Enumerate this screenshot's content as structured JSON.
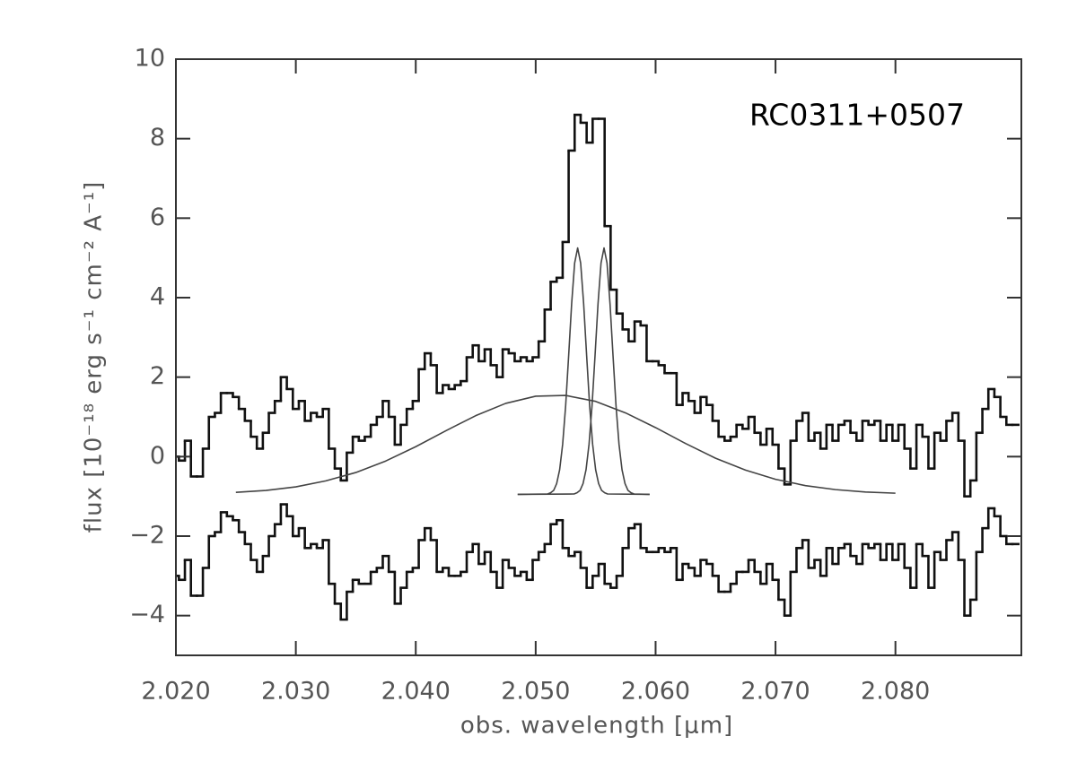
{
  "chart_data": {
    "type": "line",
    "annotation": "RC0311+0507",
    "xlabel": "obs. wavelength [μm]",
    "ylabel": "flux [10⁻¹⁸ erg s⁻¹ cm⁻² A⁻¹]",
    "xlim": [
      2.02,
      2.0905
    ],
    "ylim": [
      -5,
      10
    ],
    "xticks": [
      {
        "value": 2.02,
        "label": "2.020"
      },
      {
        "value": 2.03,
        "label": "2.030"
      },
      {
        "value": 2.04,
        "label": "2.040"
      },
      {
        "value": 2.05,
        "label": "2.050"
      },
      {
        "value": 2.06,
        "label": "2.060"
      },
      {
        "value": 2.07,
        "label": "2.070"
      },
      {
        "value": 2.08,
        "label": "2.080"
      }
    ],
    "yticks": [
      {
        "value": -4,
        "label": "−4"
      },
      {
        "value": -2,
        "label": "−2"
      },
      0,
      2,
      4,
      6,
      8,
      10
    ],
    "x": [
      2.02,
      2.0205,
      2.021,
      2.0215,
      2.022,
      2.0225,
      2.023,
      2.0235,
      2.024,
      2.0245,
      2.025,
      2.0255,
      2.026,
      2.0265,
      2.027,
      2.0275,
      2.028,
      2.0285,
      2.029,
      2.0295,
      2.03,
      2.0305,
      2.031,
      2.0315,
      2.032,
      2.0325,
      2.033,
      2.0335,
      2.034,
      2.0345,
      2.035,
      2.0355,
      2.036,
      2.0365,
      2.037,
      2.0375,
      2.038,
      2.0385,
      2.039,
      2.0395,
      2.04,
      2.0405,
      2.041,
      2.0415,
      2.042,
      2.0425,
      2.043,
      2.0435,
      2.044,
      2.0445,
      2.045,
      2.0455,
      2.046,
      2.0465,
      2.047,
      2.0475,
      2.048,
      2.0485,
      2.049,
      2.0495,
      2.05,
      2.0505,
      2.051,
      2.0515,
      2.052,
      2.0525,
      2.053,
      2.0535,
      2.054,
      2.0545,
      2.055,
      2.0555,
      2.056,
      2.0565,
      2.057,
      2.0575,
      2.058,
      2.0585,
      2.059,
      2.0595,
      2.06,
      2.0605,
      2.061,
      2.0615,
      2.062,
      2.0625,
      2.063,
      2.0635,
      2.064,
      2.0645,
      2.065,
      2.0655,
      2.066,
      2.0665,
      2.067,
      2.0675,
      2.068,
      2.0685,
      2.069,
      2.0695,
      2.07,
      2.0705,
      2.071,
      2.0715,
      2.072,
      2.0725,
      2.073,
      2.0735,
      2.074,
      2.0745,
      2.075,
      2.0755,
      2.076,
      2.0765,
      2.077,
      2.0775,
      2.078,
      2.0785,
      2.079,
      2.0795,
      2.08,
      2.0805,
      2.081,
      2.0815,
      2.082,
      2.0825,
      2.083,
      2.0835,
      2.084,
      2.0845,
      2.085,
      2.0855,
      2.086,
      2.0865,
      2.087,
      2.0875,
      2.088,
      2.0885,
      2.089,
      2.0895,
      2.09
    ],
    "series": [
      {
        "color": "#111111",
        "drawstyle": "steps-mid",
        "values": [
          0.0,
          -0.1,
          0.4,
          -0.5,
          -0.5,
          0.2,
          1.0,
          1.1,
          1.6,
          1.6,
          1.5,
          1.2,
          0.9,
          0.5,
          0.2,
          0.6,
          1.1,
          1.4,
          2.0,
          1.7,
          1.2,
          1.4,
          0.9,
          1.1,
          1.0,
          1.2,
          0.2,
          -0.3,
          -0.6,
          0.1,
          0.5,
          0.4,
          0.5,
          0.8,
          1.0,
          1.4,
          1.0,
          0.3,
          0.8,
          1.2,
          1.4,
          2.2,
          2.6,
          2.3,
          1.6,
          1.8,
          1.7,
          1.8,
          1.9,
          2.5,
          2.8,
          2.4,
          2.7,
          2.3,
          2.0,
          2.7,
          2.6,
          2.4,
          2.5,
          2.4,
          2.5,
          2.9,
          3.7,
          4.4,
          4.5,
          5.4,
          7.7,
          8.6,
          8.4,
          7.9,
          8.5,
          8.5,
          5.8,
          4.2,
          3.6,
          3.2,
          2.9,
          3.4,
          3.3,
          2.4,
          2.4,
          2.3,
          2.1,
          2.1,
          1.3,
          1.6,
          1.4,
          1.1,
          1.5,
          1.3,
          0.9,
          0.5,
          0.4,
          0.5,
          0.8,
          0.7,
          1.0,
          0.6,
          0.3,
          0.7,
          0.3,
          -0.3,
          -0.7,
          0.4,
          0.9,
          1.1,
          0.4,
          0.6,
          0.2,
          0.8,
          0.4,
          0.8,
          0.9,
          0.6,
          0.4,
          0.9,
          0.8,
          0.9,
          0.4,
          0.8,
          0.4,
          0.8,
          0.2,
          -0.3,
          0.8,
          0.5,
          -0.3,
          0.6,
          0.4,
          0.9,
          1.1,
          0.4,
          -1.0,
          -0.6,
          0.6,
          1.2,
          1.7,
          1.5,
          1.0,
          0.8,
          0.8
        ]
      },
      {
        "color": "#111111",
        "drawstyle": "steps-mid",
        "values": [
          -3.0,
          -3.1,
          -2.6,
          -3.5,
          -3.5,
          -2.8,
          -2.0,
          -1.9,
          -1.4,
          -1.5,
          -1.6,
          -1.9,
          -2.2,
          -2.6,
          -2.9,
          -2.5,
          -2.0,
          -1.7,
          -1.2,
          -1.5,
          -2.0,
          -1.8,
          -2.3,
          -2.2,
          -2.3,
          -2.1,
          -3.2,
          -3.7,
          -4.1,
          -3.4,
          -3.1,
          -3.2,
          -3.2,
          -2.9,
          -2.8,
          -2.5,
          -2.9,
          -3.7,
          -3.3,
          -2.9,
          -2.8,
          -2.1,
          -1.8,
          -2.1,
          -2.9,
          -2.8,
          -3.0,
          -3.0,
          -2.9,
          -2.4,
          -2.2,
          -2.7,
          -2.4,
          -2.9,
          -3.3,
          -2.6,
          -2.8,
          -3.0,
          -2.9,
          -3.1,
          -2.6,
          -2.4,
          -2.2,
          -1.7,
          -1.6,
          -2.3,
          -2.5,
          -2.4,
          -2.8,
          -3.3,
          -3.0,
          -2.7,
          -3.2,
          -3.3,
          -3.0,
          -2.3,
          -1.8,
          -1.7,
          -2.3,
          -2.4,
          -2.4,
          -2.3,
          -2.4,
          -2.3,
          -3.1,
          -2.7,
          -2.8,
          -3.0,
          -2.6,
          -2.7,
          -3.0,
          -3.4,
          -3.4,
          -3.2,
          -2.9,
          -2.9,
          -2.6,
          -2.9,
          -3.2,
          -2.7,
          -3.1,
          -3.6,
          -4.0,
          -2.9,
          -2.3,
          -2.1,
          -2.8,
          -2.6,
          -3.0,
          -2.3,
          -2.7,
          -2.3,
          -2.2,
          -2.5,
          -2.7,
          -2.2,
          -2.3,
          -2.2,
          -2.6,
          -2.2,
          -2.6,
          -2.2,
          -2.8,
          -3.3,
          -2.2,
          -2.5,
          -3.3,
          -2.4,
          -2.6,
          -2.1,
          -1.9,
          -2.6,
          -4.0,
          -3.6,
          -2.4,
          -1.8,
          -1.3,
          -1.5,
          -2.0,
          -2.2,
          -2.2
        ]
      },
      {
        "color": "#444444",
        "x": [
          2.025,
          2.0275,
          2.03,
          2.0325,
          2.035,
          2.0375,
          2.04,
          2.0425,
          2.045,
          2.0475,
          2.05,
          2.0525,
          2.055,
          2.0575,
          2.06,
          2.0625,
          2.065,
          2.0675,
          2.07,
          2.0725,
          2.075,
          2.0775,
          2.08
        ],
        "values": [
          -0.9,
          -0.85,
          -0.76,
          -0.61,
          -0.4,
          -0.11,
          0.25,
          0.65,
          1.03,
          1.34,
          1.52,
          1.54,
          1.39,
          1.1,
          0.73,
          0.33,
          -0.04,
          -0.34,
          -0.57,
          -0.73,
          -0.83,
          -0.89,
          -0.92
        ]
      },
      {
        "color": "#444444",
        "x": [
          2.0485,
          2.051,
          2.05125,
          2.0515,
          2.05175,
          2.052,
          2.05225,
          2.0525,
          2.05275,
          2.053,
          2.05325,
          2.0535,
          2.05375,
          2.054,
          2.05425,
          2.0545,
          2.05475,
          2.055,
          2.05525,
          2.0555,
          2.05575,
          2.056,
          2.0595
        ],
        "values": [
          -0.95,
          -0.94,
          -0.91,
          -0.85,
          -0.68,
          -0.33,
          0.31,
          1.28,
          2.54,
          3.85,
          4.87,
          5.25,
          4.87,
          3.85,
          2.54,
          1.28,
          0.31,
          -0.33,
          -0.68,
          -0.85,
          -0.91,
          -0.94,
          -0.95
        ]
      },
      {
        "color": "#444444",
        "x": [
          2.0485,
          2.0532,
          2.05345,
          2.0537,
          2.05395,
          2.0542,
          2.05445,
          2.0547,
          2.05495,
          2.0552,
          2.05545,
          2.0557,
          2.05595,
          2.0562,
          2.05645,
          2.0567,
          2.05695,
          2.0572,
          2.05745,
          2.0577,
          2.05795,
          2.0582,
          2.0595
        ],
        "values": [
          -0.95,
          -0.94,
          -0.91,
          -0.85,
          -0.68,
          -0.33,
          0.31,
          1.28,
          2.54,
          3.85,
          4.87,
          5.25,
          4.87,
          3.85,
          2.54,
          1.28,
          0.31,
          -0.33,
          -0.68,
          -0.85,
          -0.91,
          -0.94,
          -0.95
        ]
      }
    ]
  }
}
